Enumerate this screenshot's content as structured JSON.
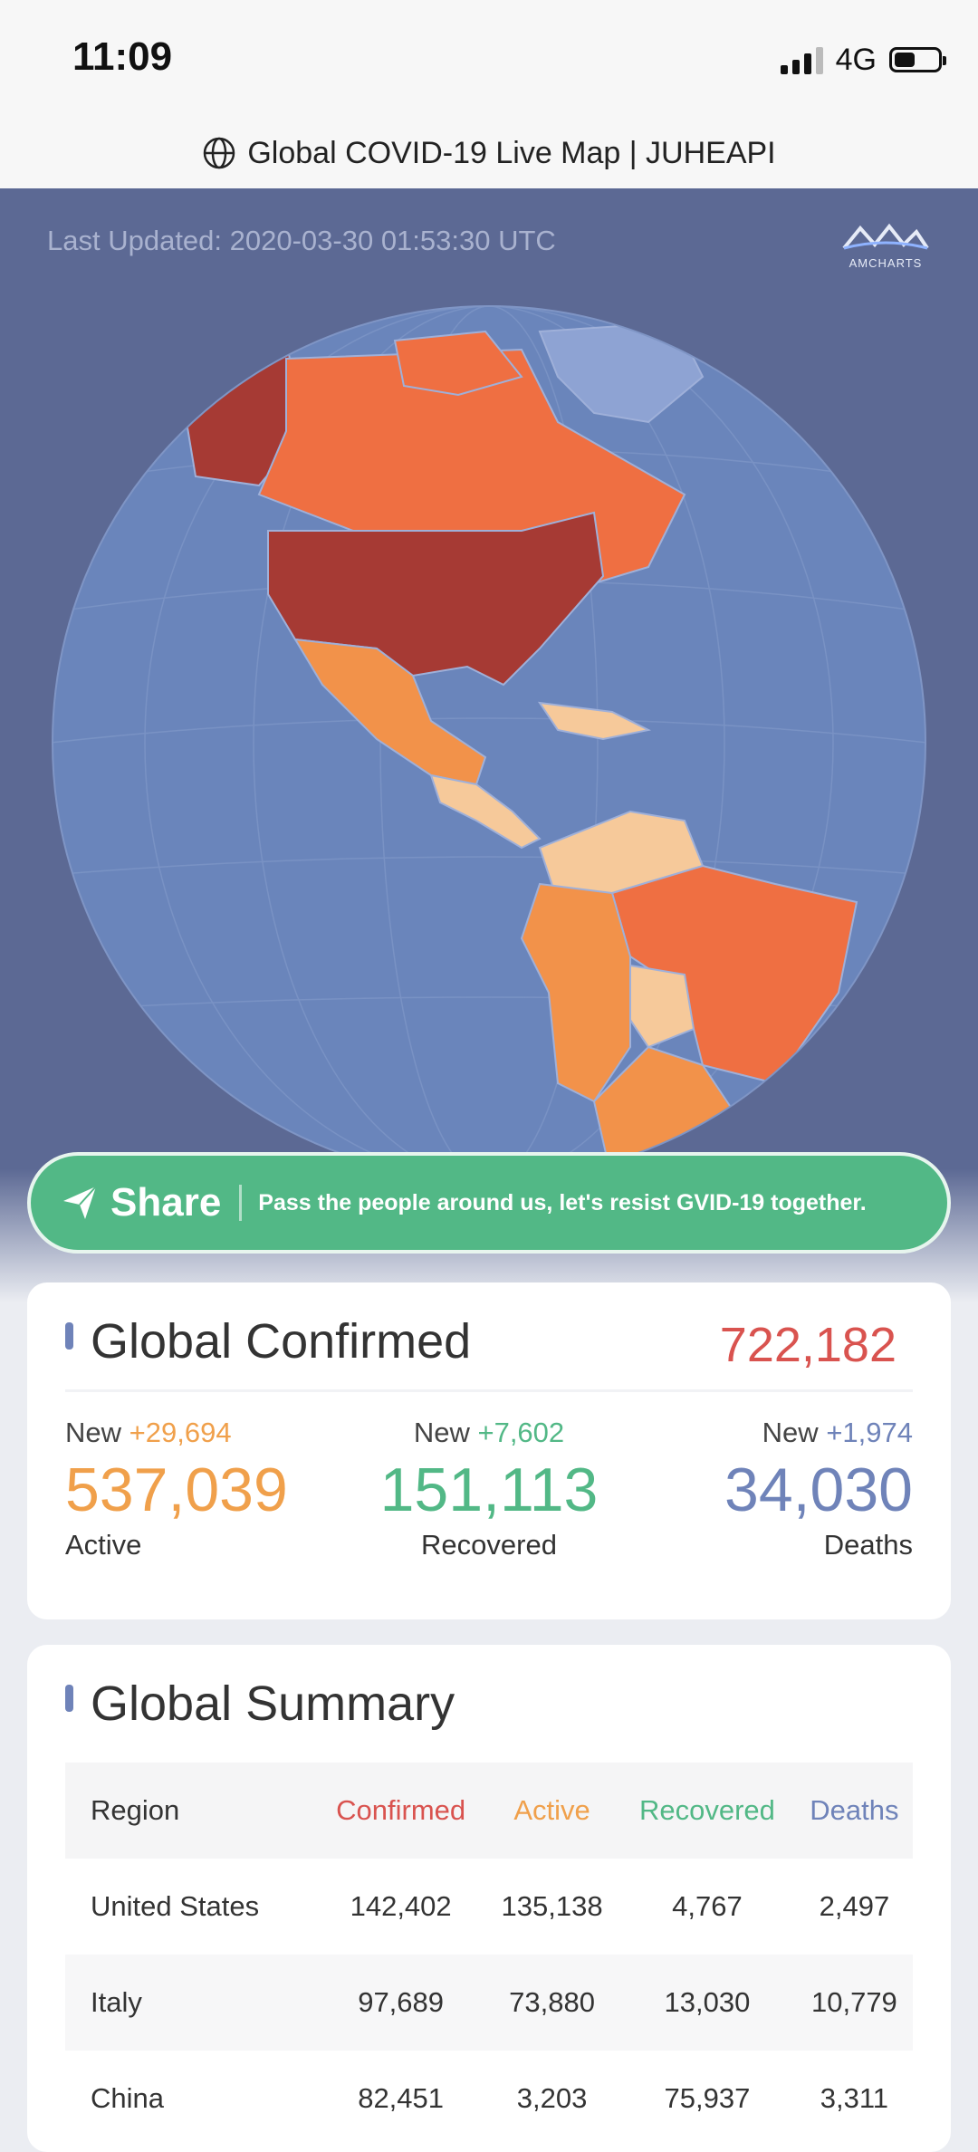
{
  "status_bar": {
    "time": "11:09",
    "network": "4G"
  },
  "browser": {
    "page_title": "Global COVID-19 Live Map | JUHEAPI"
  },
  "hero": {
    "last_updated": "Last Updated: 2020-03-30 01:53:30 UTC",
    "logo_text": "AMCHARTS"
  },
  "share": {
    "label": "Share",
    "message": "Pass the people around us, let's resist GVID-19 together."
  },
  "confirmed": {
    "title": "Global Confirmed",
    "total": "722,182",
    "active": {
      "new_label": "New",
      "new_value": "+29,694",
      "value": "537,039",
      "label": "Active"
    },
    "recovered": {
      "new_label": "New",
      "new_value": "+7,602",
      "value": "151,113",
      "label": "Recovered"
    },
    "deaths": {
      "new_label": "New",
      "new_value": "+1,974",
      "value": "34,030",
      "label": "Deaths"
    }
  },
  "summary": {
    "title": "Global Summary",
    "headers": {
      "region": "Region",
      "confirmed": "Confirmed",
      "active": "Active",
      "recovered": "Recovered",
      "deaths": "Deaths"
    },
    "rows": [
      {
        "region": "United States",
        "confirmed": "142,402",
        "active": "135,138",
        "recovered": "4,767",
        "deaths": "2,497"
      },
      {
        "region": "Italy",
        "confirmed": "97,689",
        "active": "73,880",
        "recovered": "13,030",
        "deaths": "10,779"
      },
      {
        "region": "China",
        "confirmed": "82,451",
        "active": "3,203",
        "recovered": "75,937",
        "deaths": "3,311"
      }
    ]
  },
  "colors": {
    "confirmed": "#d9534f",
    "active": "#f0a04b",
    "recovered": "#52b886",
    "deaths": "#6f83b9"
  }
}
